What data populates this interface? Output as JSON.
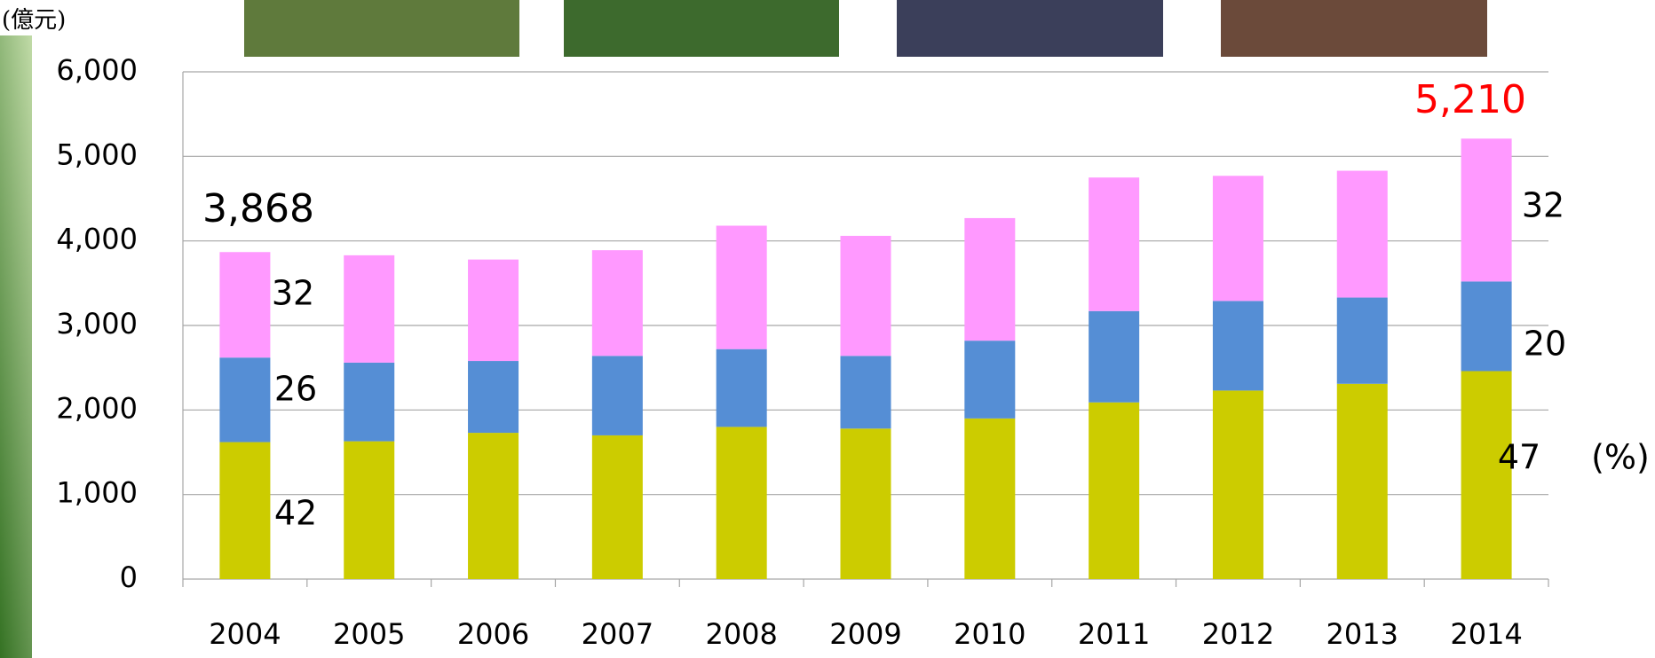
{
  "chart_data": {
    "type": "stacked_bar",
    "y_axis_unit": "(億元)",
    "categories": [
      "2004",
      "2005",
      "2006",
      "2007",
      "2008",
      "2009",
      "2010",
      "2011",
      "2012",
      "2013",
      "2014"
    ],
    "series": [
      {
        "color": "#cccc00",
        "values": [
          1620,
          1630,
          1730,
          1700,
          1800,
          1780,
          1900,
          2090,
          2230,
          2310,
          2460
        ]
      },
      {
        "color": "#558ed5",
        "values": [
          1000,
          930,
          850,
          940,
          920,
          860,
          920,
          1080,
          1060,
          1020,
          1060
        ]
      },
      {
        "color": "#ff99ff",
        "values": [
          1248,
          1270,
          1200,
          1250,
          1460,
          1420,
          1450,
          1580,
          1480,
          1500,
          1690
        ]
      }
    ],
    "ylim": [
      0,
      6000
    ],
    "yticks": [
      0,
      {
        "value": 1000,
        "label": "1,000"
      },
      {
        "value": 2000,
        "label": "2,000"
      },
      {
        "value": 3000,
        "label": "3,000"
      },
      {
        "value": 4000,
        "label": "4,000"
      },
      {
        "value": 5000,
        "label": "5,000"
      },
      {
        "value": 6000,
        "label": "6,000"
      }
    ],
    "grid": true,
    "annotations": [
      {
        "text": "3,868",
        "color": "#000000"
      },
      {
        "text": "5,210",
        "color": "#ff0000"
      },
      {
        "text": "32",
        "color": "#000000"
      },
      {
        "text": "26",
        "color": "#000000"
      },
      {
        "text": "42",
        "color": "#000000"
      },
      {
        "text": "32",
        "color": "#000000"
      },
      {
        "text": "20",
        "color": "#000000"
      },
      {
        "text": "47",
        "color": "#000000"
      },
      {
        "text": "(%)",
        "color": "#000000"
      }
    ]
  }
}
